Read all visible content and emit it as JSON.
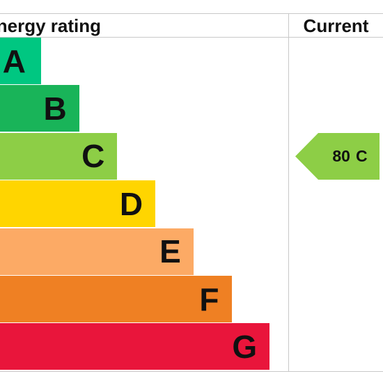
{
  "header": {
    "title": "Energy rating",
    "current_label": "Current"
  },
  "chart_data": {
    "type": "bar",
    "orientation": "horizontal",
    "categories": [
      "A",
      "B",
      "C",
      "D",
      "E",
      "F",
      "G"
    ],
    "colors": [
      "#00c781",
      "#19b459",
      "#8dce46",
      "#ffd500",
      "#fcaa65",
      "#ef8023",
      "#e9153b"
    ],
    "current": {
      "value": 80,
      "band": "C",
      "color": "#8dce46"
    }
  }
}
